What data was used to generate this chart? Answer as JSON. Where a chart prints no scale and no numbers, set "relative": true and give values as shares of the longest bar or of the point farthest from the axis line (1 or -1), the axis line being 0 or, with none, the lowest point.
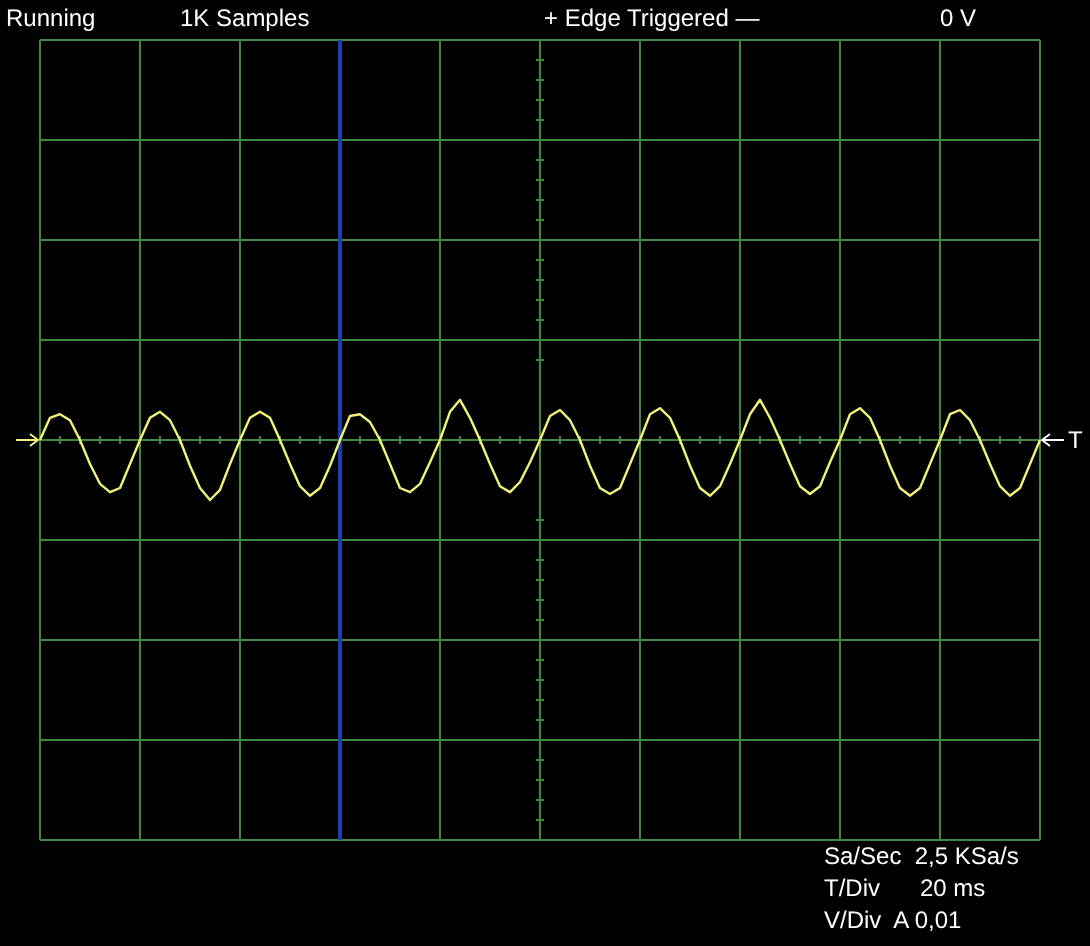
{
  "chart_data": {
    "type": "line",
    "relative": true,
    "grid": true,
    "line_style": "solid",
    "annotations": [
      "Running",
      "1K Samples",
      "+ Edge Triggered —",
      "0 V",
      "T",
      "Sa/Sec  2,5 KSa/s",
      "T/Div      20 ms",
      "V/Div  A 0,01"
    ],
    "categories": [
      null,
      null,
      null,
      null,
      null,
      null,
      null,
      null,
      null,
      null,
      null,
      null,
      null,
      null,
      null,
      null,
      null,
      null,
      null,
      null,
      null,
      null,
      null,
      null,
      null,
      null,
      null,
      null,
      null,
      null,
      null,
      null,
      null,
      null,
      null,
      null,
      null,
      null,
      null,
      null,
      null,
      null,
      null,
      null,
      null,
      null,
      null,
      null,
      null,
      null,
      null,
      null,
      null,
      null,
      null,
      null,
      null,
      null,
      null,
      null,
      null,
      null,
      null,
      null,
      null,
      null,
      null,
      null,
      null,
      null,
      null,
      null,
      null,
      null,
      null,
      null,
      null,
      null,
      null,
      null,
      null,
      null,
      null,
      null,
      null,
      null,
      null,
      null,
      null,
      null,
      null,
      null,
      null,
      null,
      null,
      null,
      null,
      null,
      null,
      null,
      null
    ],
    "series": [
      {
        "color": "#f2f27a",
        "values": [
          0,
          0.37,
          0.43,
          0.33,
          0,
          -0.4,
          -0.73,
          -0.87,
          -0.8,
          -0.4,
          0,
          0.37,
          0.47,
          0.33,
          0,
          -0.43,
          -0.8,
          -1,
          -0.83,
          -0.4,
          0,
          0.37,
          0.47,
          0.37,
          0,
          -0.4,
          -0.77,
          -0.93,
          -0.8,
          -0.43,
          0,
          0.4,
          0.43,
          0.3,
          0,
          -0.4,
          -0.8,
          -0.87,
          -0.73,
          -0.37,
          0,
          0.47,
          0.67,
          0.37,
          0,
          -0.4,
          -0.77,
          -0.87,
          -0.7,
          -0.37,
          0,
          0.4,
          0.5,
          0.33,
          0,
          -0.43,
          -0.8,
          -0.9,
          -0.8,
          -0.4,
          0,
          0.43,
          0.53,
          0.37,
          0,
          -0.43,
          -0.8,
          -0.93,
          -0.77,
          -0.4,
          0,
          0.43,
          0.67,
          0.37,
          0,
          -0.4,
          -0.77,
          -0.9,
          -0.77,
          -0.37,
          0,
          0.43,
          0.53,
          0.37,
          0,
          -0.43,
          -0.8,
          -0.93,
          -0.8,
          -0.4,
          0,
          0.43,
          0.5,
          0.33,
          0,
          -0.4,
          -0.77,
          -0.93,
          -0.8,
          -0.4,
          0
        ]
      }
    ]
  }
}
